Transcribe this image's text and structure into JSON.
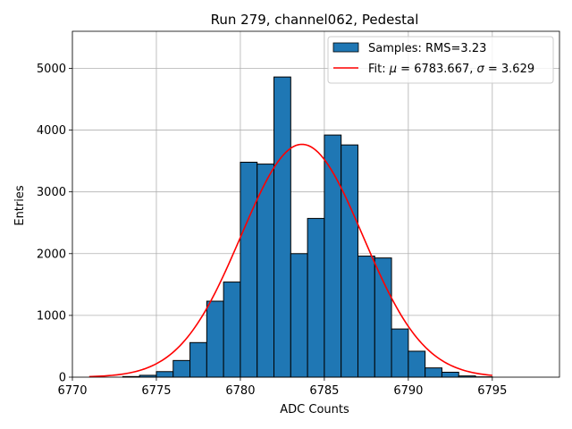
{
  "chart_data": {
    "type": "bar",
    "title": "Run 279, channel062, Pedestal",
    "xlabel": "ADC Counts",
    "ylabel": "Entries",
    "xlim": [
      6770,
      6799
    ],
    "ylim": [
      0,
      5600
    ],
    "xticks": [
      6770,
      6775,
      6780,
      6785,
      6790,
      6795
    ],
    "yticks": [
      0,
      1000,
      2000,
      3000,
      4000,
      5000
    ],
    "grid": true,
    "legend_position": "top-right",
    "bar_color": "#1f77b4",
    "fit_color": "#ff0000",
    "bins": [
      6773,
      6774,
      6775,
      6776,
      6777,
      6778,
      6779,
      6780,
      6781,
      6782,
      6783,
      6784,
      6785,
      6786,
      6787,
      6788,
      6789,
      6790,
      6791,
      6792,
      6793,
      6794
    ],
    "bin_width": 1,
    "values": [
      10,
      30,
      90,
      270,
      560,
      1230,
      1540,
      3480,
      3450,
      4860,
      2000,
      2570,
      3920,
      3760,
      1960,
      1930,
      780,
      420,
      150,
      80,
      20,
      5
    ],
    "series": [
      {
        "name": "Samples: RMS=3.23",
        "kind": "histogram"
      },
      {
        "name": "Fit: μ = 6783.667, σ = 3.629",
        "kind": "gaussian",
        "mu": 6783.667,
        "sigma": 3.629,
        "amplitude": 3770,
        "x_range": [
          6771,
          6795
        ]
      }
    ],
    "legend": {
      "samples_prefix": "Samples: RMS=3.23",
      "fit_prefix": "Fit: ",
      "fit_mu_symbol": "μ",
      "fit_mu_value": " = 6783.667, ",
      "fit_sigma_symbol": "σ",
      "fit_sigma_value": " = 3.629"
    }
  }
}
